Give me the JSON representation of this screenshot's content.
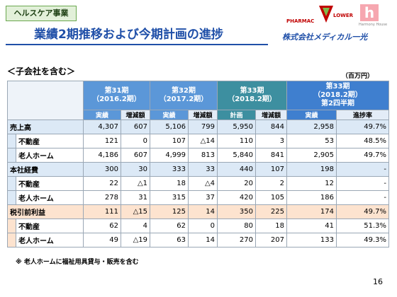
{
  "header": {
    "tag": "ヘルスケア事業",
    "title": "業績2期推移および今期計画の進捗",
    "logo_pharmac": "PHARMAC",
    "logo_flower": "LOWER",
    "logo_harmony": "Harmony House",
    "company": "株式会社メディカル一光"
  },
  "subtitle": "＜子会社を含む＞",
  "unit": "（百万円）",
  "table": {
    "groups": [
      {
        "lines": [
          "第31期",
          "（2016.2期）"
        ],
        "columns": [
          "実績",
          "増減額"
        ]
      },
      {
        "lines": [
          "第32期",
          "（2017.2期）"
        ],
        "columns": [
          "実績",
          "増減額"
        ]
      },
      {
        "lines": [
          "第33期",
          "（2018.2期）"
        ],
        "columns": [
          "計画",
          "増減額"
        ]
      },
      {
        "lines": [
          "第33期",
          "（2018.2期）",
          "第2四半期"
        ],
        "columns": [
          "実績",
          "進捗率"
        ]
      }
    ],
    "sections": [
      {
        "label": "売上高",
        "values": [
          "4,307",
          "607",
          "5,106",
          "799",
          "5,950",
          "844",
          "2,958",
          "49.7%"
        ],
        "items": [
          {
            "label": "不動産",
            "values": [
              "121",
              "0",
              "107",
              "△14",
              "110",
              "3",
              "53",
              "48.5%"
            ]
          },
          {
            "label": "老人ホーム",
            "values": [
              "4,186",
              "607",
              "4,999",
              "813",
              "5,840",
              "841",
              "2,905",
              "49.7%"
            ]
          }
        ]
      },
      {
        "label": "本社経費",
        "values": [
          "300",
          "30",
          "333",
          "33",
          "440",
          "107",
          "198",
          "-"
        ],
        "items": [
          {
            "label": "不動産",
            "values": [
              "22",
              "△1",
              "18",
              "△4",
              "20",
              "2",
              "12",
              "-"
            ]
          },
          {
            "label": "老人ホーム",
            "values": [
              "278",
              "31",
              "315",
              "37",
              "420",
              "105",
              "186",
              "-"
            ]
          }
        ]
      },
      {
        "label": "税引前利益",
        "values": [
          "111",
          "△15",
          "125",
          "14",
          "350",
          "225",
          "174",
          "49.7%"
        ],
        "items": [
          {
            "label": "不動産",
            "values": [
              "62",
              "4",
              "62",
              "0",
              "80",
              "18",
              "41",
              "51.3%"
            ]
          },
          {
            "label": "老人ホーム",
            "values": [
              "49",
              "△19",
              "63",
              "14",
              "270",
              "207",
              "133",
              "49.3%"
            ]
          }
        ]
      }
    ]
  },
  "footnote": "※ 老人ホームに福祉用具貸与・販売を含む",
  "page": "16"
}
